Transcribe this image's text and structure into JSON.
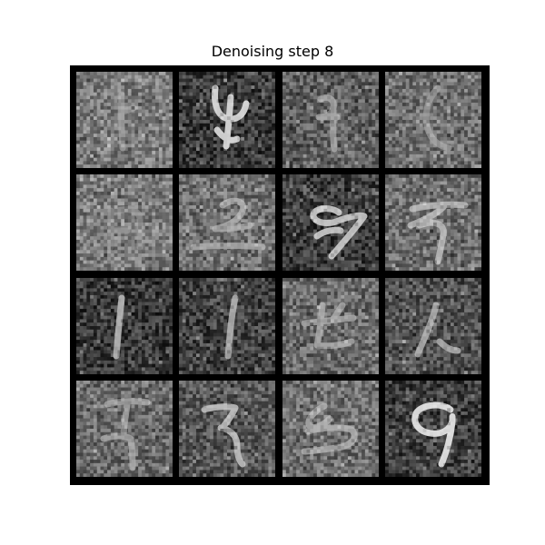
{
  "figure": {
    "title": "Denoising step 8"
  },
  "grid": {
    "rows": 4,
    "cols": 4,
    "frame_color": "#000000",
    "cells": [
      {
        "glyph": "1",
        "background": "#7a7a7a",
        "stroke_color": "#b0b0b0",
        "clarity": 0.35
      },
      {
        "glyph": "4",
        "background": "#3a3a3a",
        "stroke_color": "#e6e6e6",
        "clarity": 0.8
      },
      {
        "glyph": "4",
        "background": "#5e5e5e",
        "stroke_color": "#b5b5b5",
        "clarity": 0.55
      },
      {
        "glyph": "(",
        "background": "#6e6e6e",
        "stroke_color": "#a6a6a6",
        "clarity": 0.45
      },
      {
        "glyph": "0",
        "background": "#7c7c7c",
        "stroke_color": "#a8a8a8",
        "clarity": 0.25
      },
      {
        "glyph": "2",
        "background": "#707070",
        "stroke_color": "#bdbdbd",
        "clarity": 0.5
      },
      {
        "glyph": "9",
        "background": "#3c3c3c",
        "stroke_color": "#d8d8d8",
        "clarity": 0.75
      },
      {
        "glyph": "7",
        "background": "#6e6e6e",
        "stroke_color": "#c8c8c8",
        "clarity": 0.6
      },
      {
        "glyph": "1",
        "background": "#393939",
        "stroke_color": "#c4c4c4",
        "clarity": 0.7
      },
      {
        "glyph": "1",
        "background": "#414141",
        "stroke_color": "#bcbcbc",
        "clarity": 0.7
      },
      {
        "glyph": "f",
        "background": "#6a6a6a",
        "stroke_color": "#b8b8b8",
        "clarity": 0.55
      },
      {
        "glyph": "l",
        "background": "#505050",
        "stroke_color": "#c0c0c0",
        "clarity": 0.6
      },
      {
        "glyph": "7",
        "background": "#6a6a6a",
        "stroke_color": "#b8b8b8",
        "clarity": 0.5
      },
      {
        "glyph": "7",
        "background": "#575757",
        "stroke_color": "#d0d0d0",
        "clarity": 0.65
      },
      {
        "glyph": "5",
        "background": "#6e6e6e",
        "stroke_color": "#bdbdbd",
        "clarity": 0.55
      },
      {
        "glyph": "9",
        "background": "#3e3e3e",
        "stroke_color": "#eaeaea",
        "clarity": 0.85
      }
    ]
  }
}
